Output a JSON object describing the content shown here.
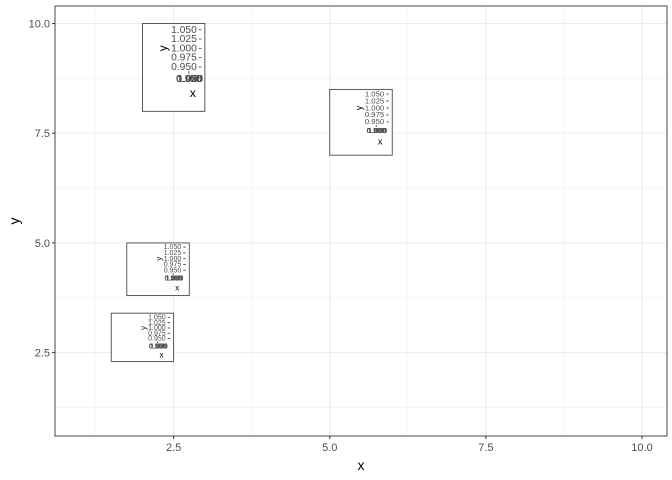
{
  "chart_data": {
    "type": "scatter",
    "title": "",
    "xlabel": "x",
    "ylabel": "y",
    "xlim": [
      0.6,
      10.4
    ],
    "ylim": [
      0.6,
      10.4
    ],
    "x_ticks": [
      2.5,
      5.0,
      7.5,
      10.0
    ],
    "x_tick_labels": [
      "2.5",
      "5.0",
      "7.5",
      "10.0"
    ],
    "y_ticks": [
      2.5,
      5.0,
      7.5,
      10.0
    ],
    "y_tick_labels": [
      "2.5",
      "5.0",
      "7.5",
      "10.0"
    ],
    "x_minor": [
      1.25,
      3.75,
      6.25,
      8.75
    ],
    "y_minor": [
      1.25,
      3.75,
      6.25,
      8.75
    ],
    "grid": true,
    "theme": "bw",
    "insets": [
      {
        "x": [
          2.0,
          3.0
        ],
        "y": [
          8.0,
          10.0
        ],
        "xlabel": "x",
        "ylabel": "y",
        "y_tick_labels": [
          "1.050",
          "1.025",
          "1.000",
          "0.975",
          "0.950"
        ],
        "x_tick_labels": [
          "0.950",
          "0.975",
          "1.000",
          "1.025",
          "1.050"
        ]
      },
      {
        "x": [
          5.0,
          6.0
        ],
        "y": [
          7.0,
          8.5
        ],
        "xlabel": "x",
        "ylabel": "y",
        "y_tick_labels": [
          "1.050",
          "1.025",
          "1.000",
          "0.975",
          "0.950"
        ],
        "x_tick_labels": [
          "0.950",
          "0.975",
          "1.000",
          "1.025",
          "1.050"
        ]
      },
      {
        "x": [
          1.75,
          2.75
        ],
        "y": [
          3.8,
          5.0
        ],
        "xlabel": "x",
        "ylabel": "y",
        "y_tick_labels": [
          "1.050",
          "1.025",
          "1.000",
          "0.975",
          "0.950"
        ],
        "x_tick_labels": [
          "0.950",
          "0.975",
          "1.000",
          "1.025",
          "1.050"
        ]
      },
      {
        "x": [
          1.5,
          2.5
        ],
        "y": [
          2.3,
          3.4
        ],
        "xlabel": "x",
        "ylabel": "y",
        "y_tick_labels": [
          "1.050",
          "1.025",
          "1.000",
          "0.975",
          "0.950"
        ],
        "x_tick_labels": [
          "0.950",
          "0.975",
          "1.000",
          "1.025",
          "1.050"
        ]
      }
    ]
  }
}
